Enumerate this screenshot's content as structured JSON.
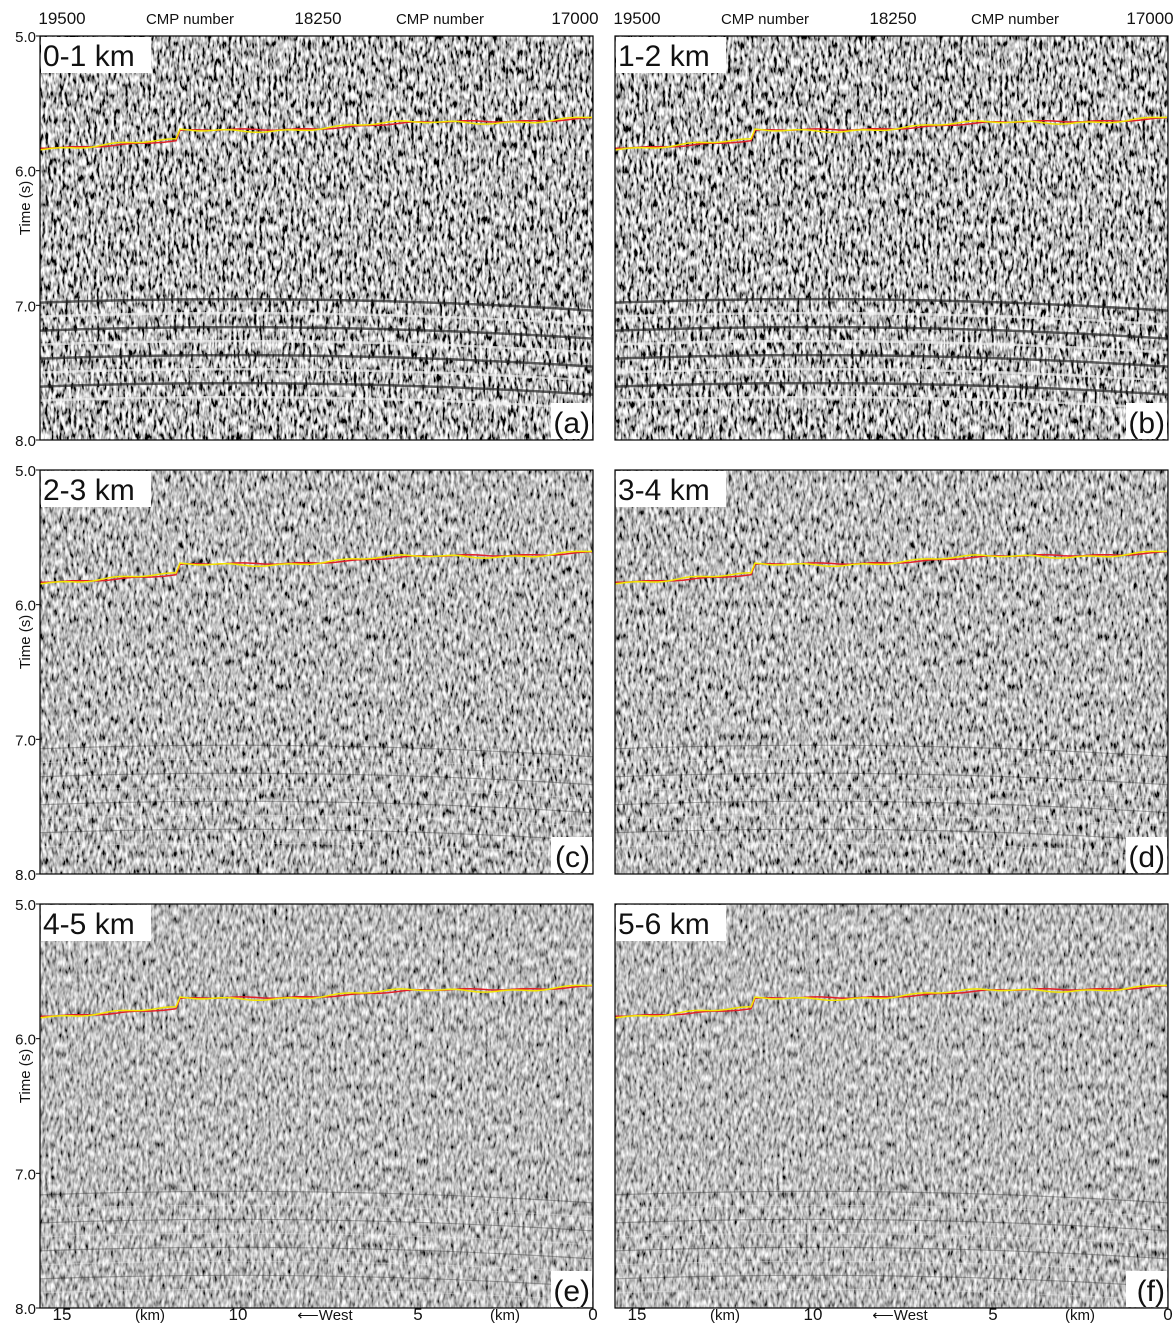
{
  "y_axis": {
    "label": "Time (s)",
    "ticks": [
      "5.0",
      "6.0",
      "7.0",
      "8.0"
    ]
  },
  "top_axis": [
    "19500",
    "CMP number",
    "18250",
    "CMP number",
    "17000"
  ],
  "bottom_axis": [
    "15",
    "(km)",
    "10",
    "⟵West",
    "5",
    "(km)",
    "0"
  ],
  "panels": [
    {
      "title": "0-1 km",
      "tag": "(a)"
    },
    {
      "title": "1-2 km",
      "tag": "(b)"
    },
    {
      "title": "2-3 km",
      "tag": "(c)"
    },
    {
      "title": "3-4 km",
      "tag": "(d)"
    },
    {
      "title": "4-5 km",
      "tag": "(e)"
    },
    {
      "title": "5-6 km",
      "tag": "(f)"
    }
  ]
}
